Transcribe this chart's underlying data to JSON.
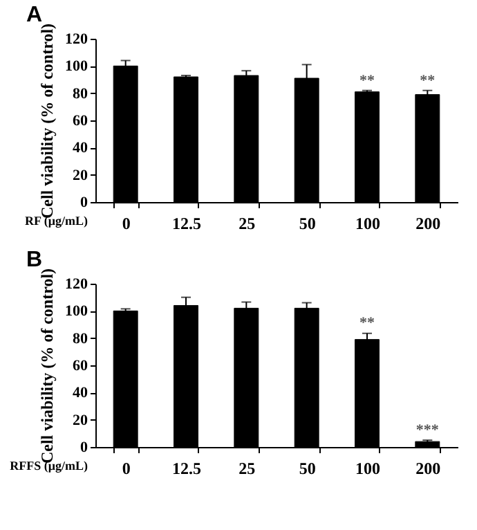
{
  "chart_data": [
    {
      "type": "bar",
      "title": "A",
      "xlabel": "RF (μg/mL)",
      "ylabel": "Cell viability (% of control)",
      "categories": [
        "0",
        "12.5",
        "25",
        "50",
        "100",
        "200"
      ],
      "series": [
        {
          "color": "#000000",
          "values": [
            100,
            92,
            93,
            91,
            81,
            79
          ],
          "errors": [
            4,
            1,
            3.5,
            10,
            1,
            3
          ]
        }
      ],
      "ylim": [
        0,
        120
      ],
      "yticks": [
        0,
        20,
        40,
        60,
        80,
        100,
        120
      ],
      "grid": false,
      "annotations": [
        {
          "text": "**",
          "x": "100",
          "y": 84
        },
        {
          "text": "**",
          "x": "200",
          "y": 84
        }
      ]
    },
    {
      "type": "bar",
      "title": "B",
      "xlabel": "RFFS  (μg/mL)",
      "ylabel": "Cell viability (% of control)",
      "categories": [
        "0",
        "12.5",
        "25",
        "50",
        "100",
        "200"
      ],
      "series": [
        {
          "color": "#000000",
          "values": [
            100,
            104,
            102,
            102,
            79,
            4
          ],
          "errors": [
            1.5,
            6,
            4.5,
            4,
            4.5,
            1
          ]
        }
      ],
      "ylim": [
        0,
        120
      ],
      "yticks": [
        0,
        20,
        40,
        60,
        80,
        100,
        120
      ],
      "grid": false,
      "annotations": [
        {
          "text": "**",
          "x": "100",
          "y": 86
        },
        {
          "text": "***",
          "x": "200",
          "y": 7
        }
      ]
    }
  ]
}
